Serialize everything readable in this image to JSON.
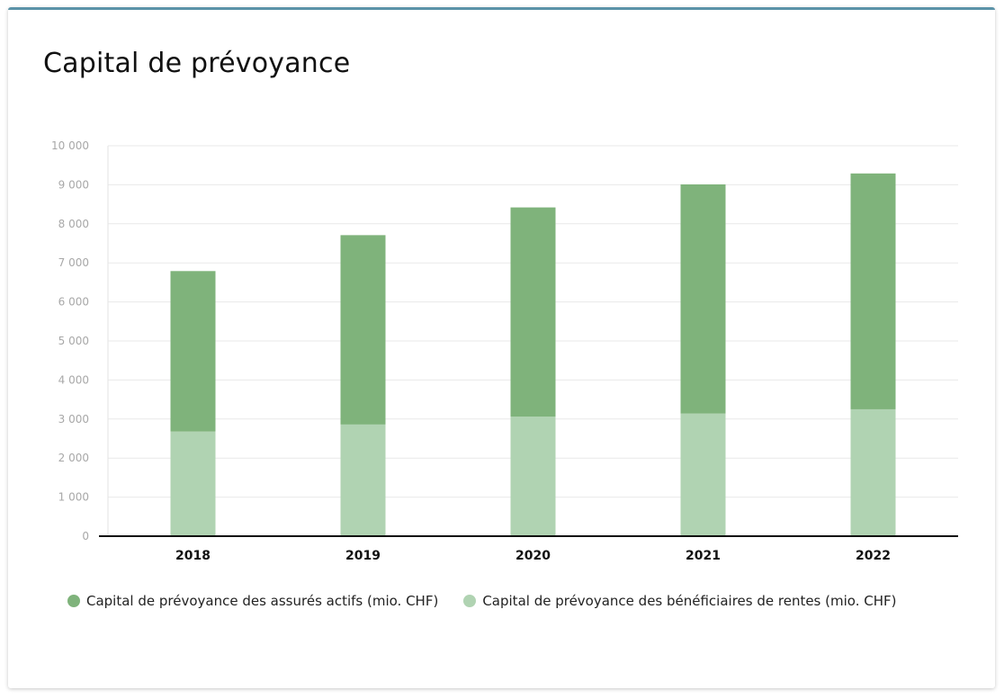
{
  "page": {
    "title": "Capital de prévoyance"
  },
  "chart_data": {
    "type": "bar",
    "stacked": true,
    "title": "Capital de prévoyance",
    "categories": [
      "2018",
      "2019",
      "2020",
      "2021",
      "2022"
    ],
    "series": [
      {
        "name": "Capital de prévoyance des bénéficiaires de rentes (mio. CHF)",
        "color": "#b0d3b2",
        "values": [
          2680,
          2860,
          3060,
          3140,
          3250
        ]
      },
      {
        "name": "Capital de prévoyance des assurés actifs (mio. CHF)",
        "color": "#7fb37b",
        "values": [
          4110,
          4850,
          5360,
          5870,
          6040
        ]
      }
    ],
    "ylim": [
      0,
      10000
    ],
    "yticks": [
      0,
      1000,
      2000,
      3000,
      4000,
      5000,
      6000,
      7000,
      8000,
      9000,
      10000
    ],
    "ytick_labels": [
      "0",
      "1 000",
      "2 000",
      "3 000",
      "4 000",
      "5 000",
      "6 000",
      "7 000",
      "8 000",
      "9 000",
      "10 000"
    ],
    "grid": true,
    "legend_position": "bottom-left",
    "legend": [
      {
        "label": "Capital de prévoyance des assurés actifs (mio. CHF)",
        "color": "#7fb37b"
      },
      {
        "label": "Capital de prévoyance des bénéficiaires de rentes (mio. CHF)",
        "color": "#b0d3b2"
      }
    ]
  }
}
